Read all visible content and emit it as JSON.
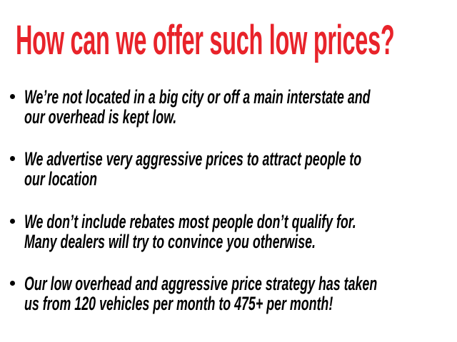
{
  "title": "How can we offer such low prices?",
  "colors": {
    "title": "#e8232a",
    "text": "#000000"
  },
  "bullets": [
    {
      "lines": [
        "We’re not located in a big city or off a main interstate and",
        "our overhead is kept low."
      ]
    },
    {
      "lines": [
        "We advertise very aggressive prices to attract people to",
        "our location"
      ]
    },
    {
      "lines": [
        "We don’t include rebates most people don’t qualify for.",
        "Many dealers will try to convince you otherwise."
      ]
    },
    {
      "lines": [
        "Our low overhead and aggressive price strategy has taken",
        "us from 120 vehicles per month to 475+ per month!"
      ]
    }
  ]
}
